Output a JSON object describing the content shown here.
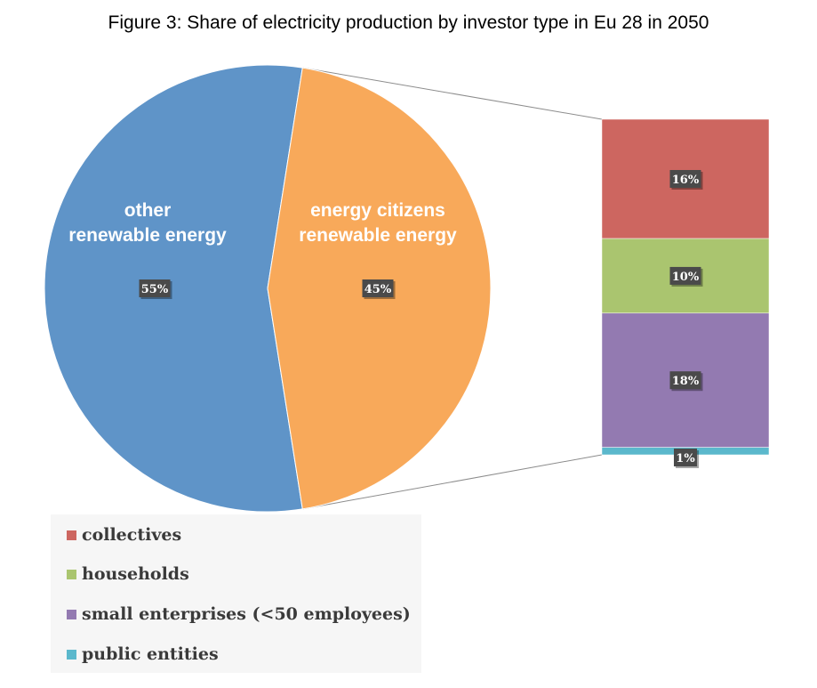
{
  "chart_data": {
    "type": "pie",
    "title": "Figure 3: Share of electricity production by investor type in Eu 28 in 2050",
    "pie": {
      "slices": [
        {
          "name_lines": [
            "other",
            "renewable energy"
          ],
          "value": 55,
          "label": "55%",
          "color": "#5f94c8"
        },
        {
          "name_lines": [
            "energy citizens",
            "renewable energy"
          ],
          "value": 45,
          "label": "45%",
          "color": "#f8a95a"
        }
      ]
    },
    "breakdown": {
      "of_slice": "energy citizens renewable energy",
      "segments": [
        {
          "name": "collectives",
          "value": 16,
          "label": "16%",
          "color": "#cd6660"
        },
        {
          "name": "households",
          "value": 10,
          "label": "10%",
          "color": "#aac56f"
        },
        {
          "name": "small enterprises (<50 employees)",
          "value": 18,
          "label": "18%",
          "color": "#937ab1"
        },
        {
          "name": "public entities",
          "value": 1,
          "label": "1%",
          "color": "#5bb8cc"
        }
      ]
    },
    "legend": {
      "placement": "bottom-left",
      "entries": [
        {
          "label": "collectives",
          "color": "#cd6660"
        },
        {
          "label": "households",
          "color": "#aac56f"
        },
        {
          "label": "small enterprises (<50 employees)",
          "color": "#937ab1"
        },
        {
          "label": "public entities",
          "color": "#5bb8cc"
        }
      ]
    }
  }
}
